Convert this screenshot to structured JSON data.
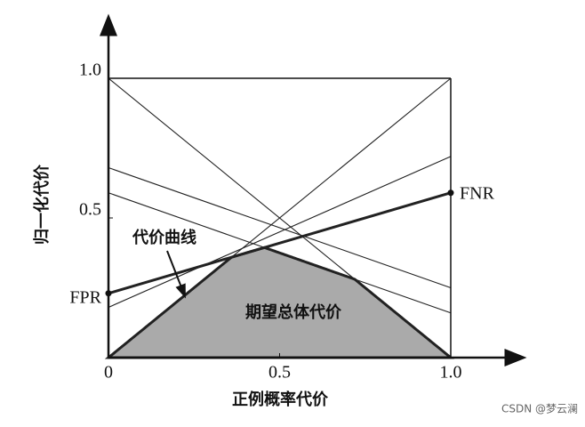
{
  "chart_data": {
    "type": "cost-curve",
    "x_label": "正例概率代价",
    "y_label": "归一化代价",
    "x": [
      0,
      1
    ],
    "lines": [
      {
        "values": [
          0,
          1
        ],
        "bold": false
      },
      {
        "values": [
          1,
          0
        ],
        "bold": false
      },
      {
        "values": [
          0.68,
          0.25
        ],
        "bold": false
      },
      {
        "values": [
          0.59,
          0.16
        ],
        "bold": false
      },
      {
        "values": [
          0.18,
          0.72
        ],
        "bold": false
      },
      {
        "values": [
          0.23,
          0.59
        ],
        "bold": true
      }
    ],
    "xlim": [
      0,
      1
    ],
    "ylim": [
      0,
      1
    ],
    "xticks": [
      0,
      0.5,
      {
        "value": 1,
        "label": "1.0"
      }
    ],
    "yticks": [
      0.5,
      {
        "value": 1,
        "label": "1.0"
      }
    ],
    "left_label": "FPR",
    "right_label": "FNR",
    "curve_annotation": "代价曲线",
    "region_label": "期望总体代价",
    "region_color": "#aaaaaa",
    "watermark": "CSDN @梦云澜"
  }
}
